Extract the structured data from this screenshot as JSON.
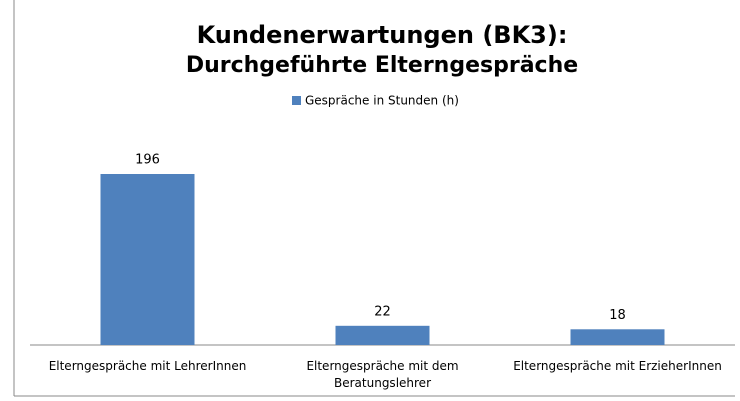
{
  "chart_data": {
    "type": "bar",
    "title": [
      "Kundenerwartungen (BK3):",
      "Durchgeführte Elterngespräche"
    ],
    "categories": [
      "Elterngespräche mit LehrerInnen",
      "Elterngespräche mit dem Beratungslehrer",
      "Elterngespräche mit ErzieherInnen"
    ],
    "series": [
      {
        "name": "Gespräche in Stunden (h)",
        "color": "#4f81bd",
        "values": [
          196,
          22,
          18
        ]
      }
    ],
    "legend": "top"
  }
}
